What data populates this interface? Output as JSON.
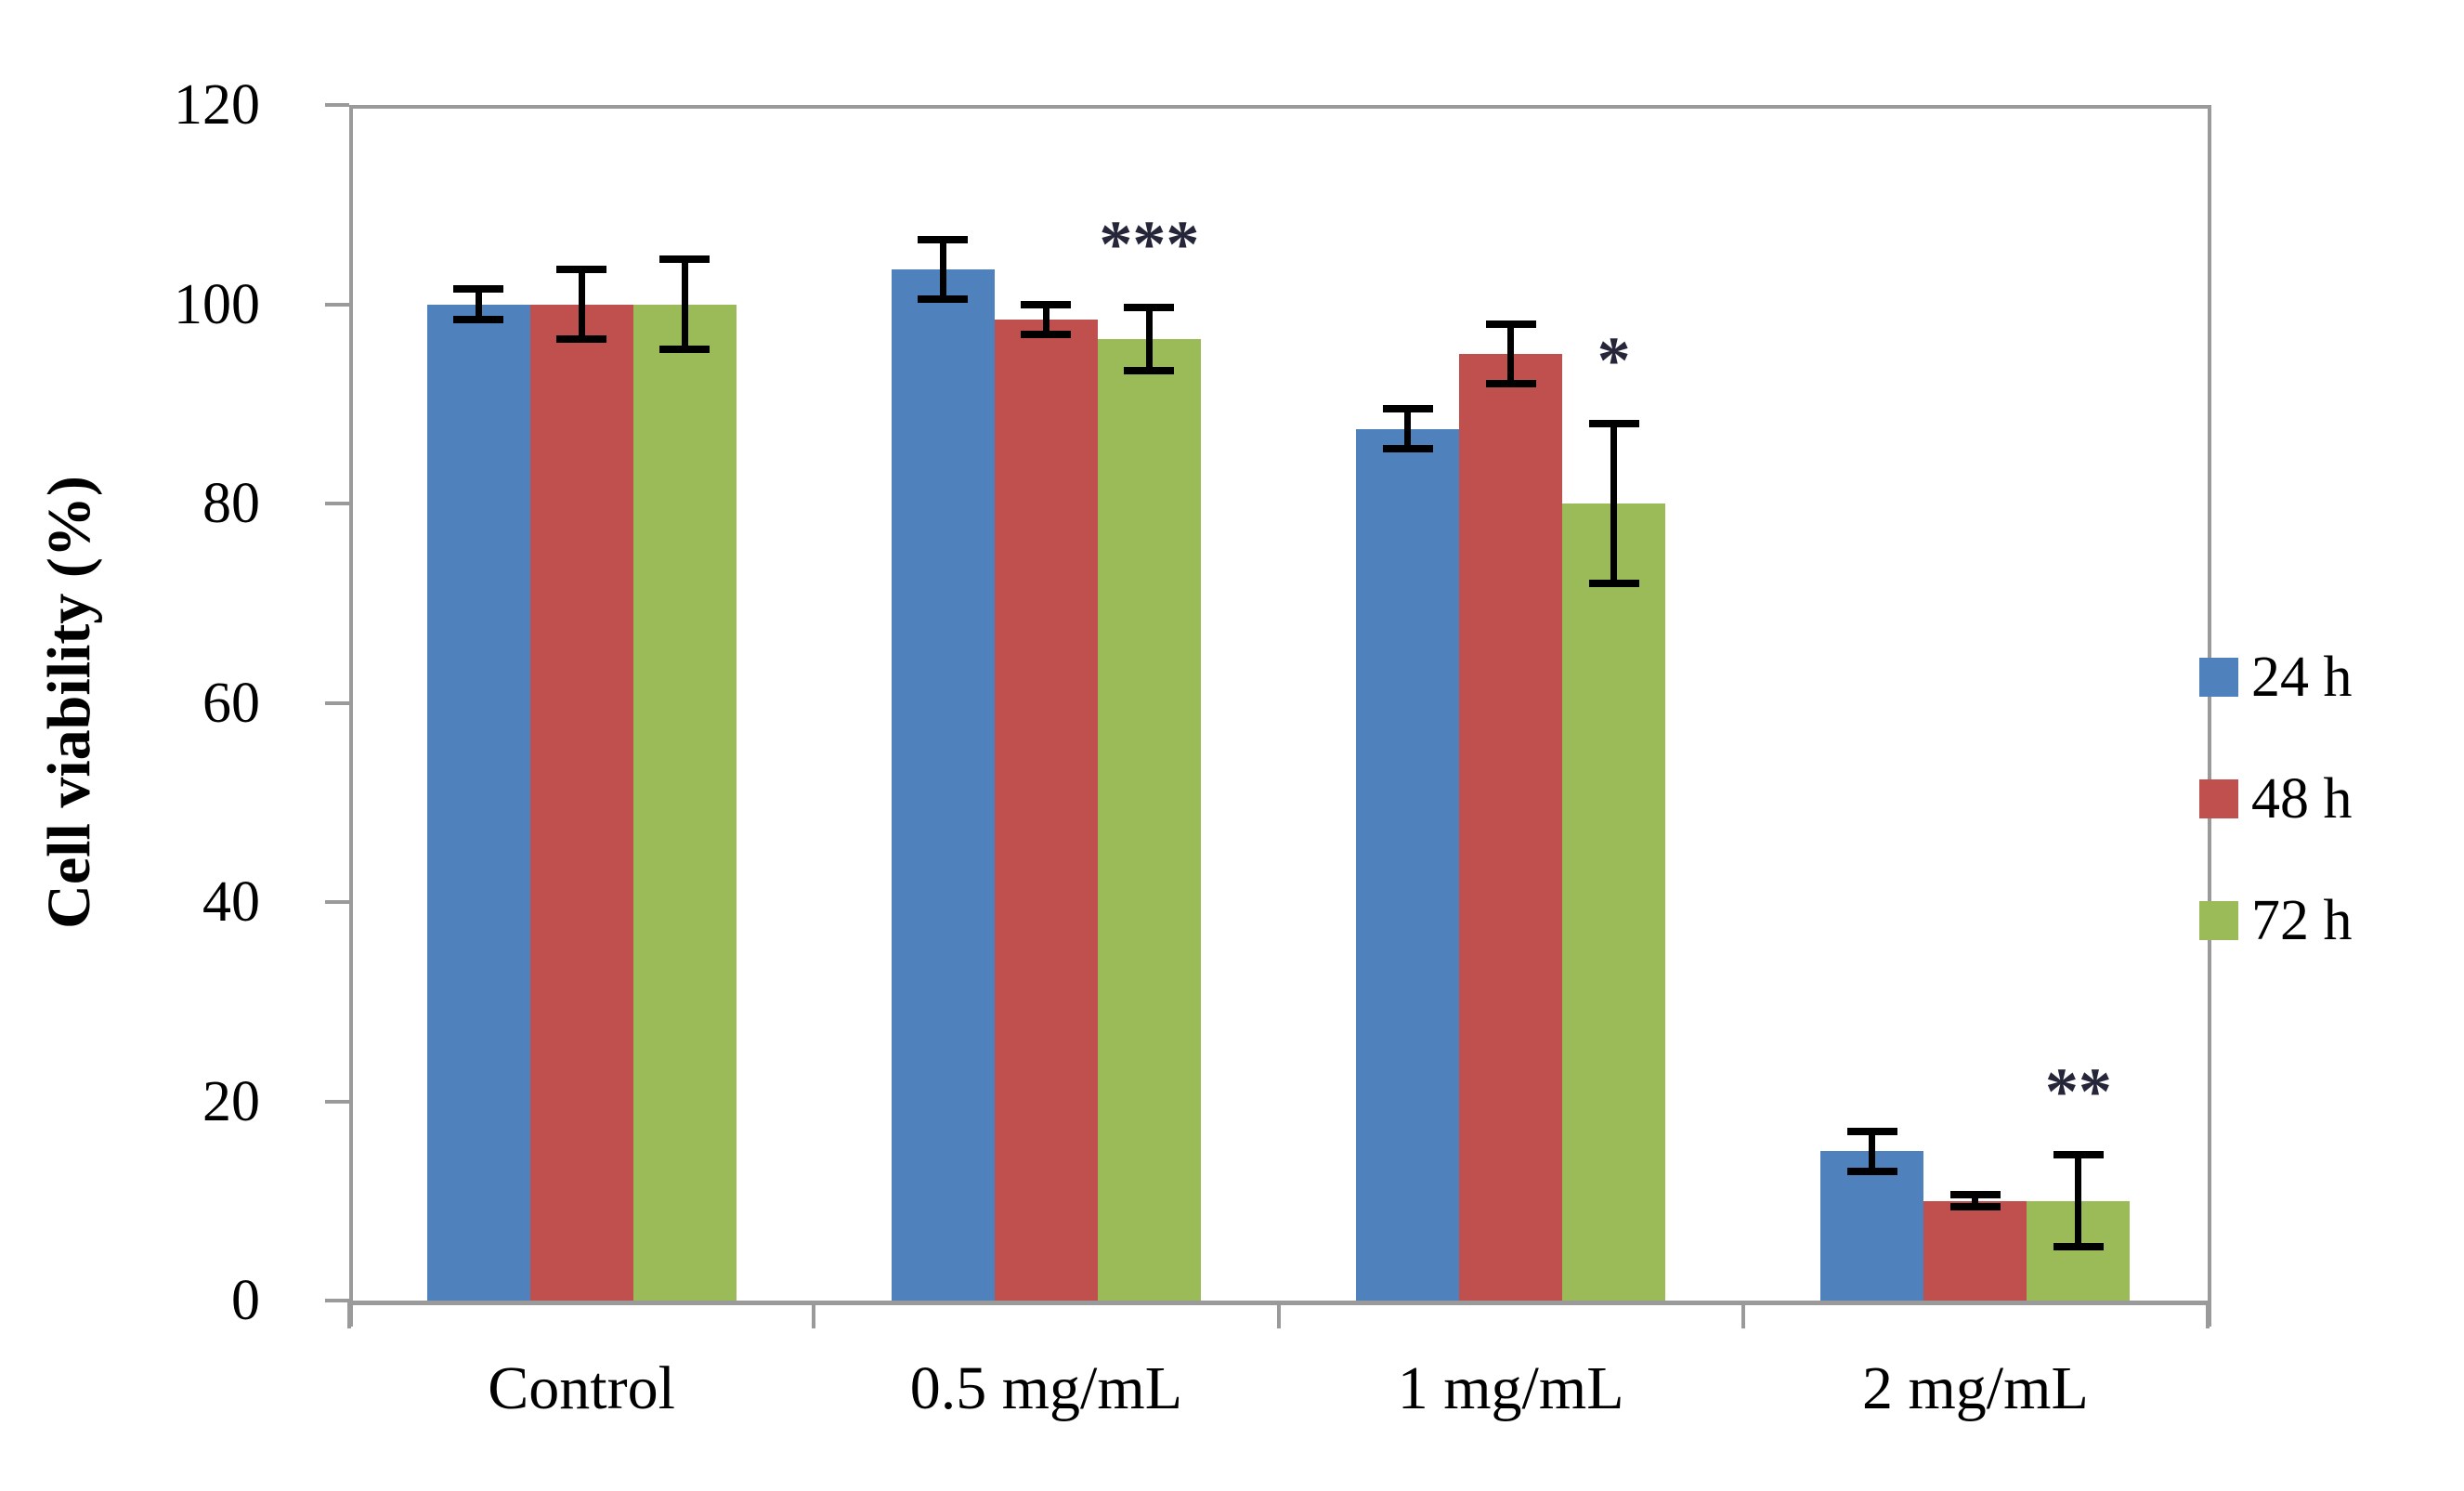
{
  "figure": {
    "background": "#ffffff"
  },
  "chart_data": {
    "type": "bar",
    "title": "",
    "xlabel": "",
    "ylabel": "Cell viability (%)",
    "ylim": [
      0,
      120
    ],
    "yticks": [
      0,
      20,
      40,
      60,
      80,
      100,
      120
    ],
    "grid": false,
    "legend_position": "right",
    "categories": [
      "Control",
      "0.5 mg/mL",
      "1 mg/mL",
      "2 mg/mL"
    ],
    "series": [
      {
        "name": "24 h",
        "color": "#4f81bd",
        "values": [
          100,
          103.5,
          87.5,
          15
        ],
        "errors": [
          1.5,
          3.0,
          2.0,
          2.0
        ]
      },
      {
        "name": "48 h",
        "color": "#c0504d",
        "values": [
          100,
          98.5,
          95,
          10
        ],
        "errors": [
          3.5,
          1.5,
          3.0,
          0.6
        ]
      },
      {
        "name": "72 h",
        "color": "#9bbb59",
        "values": [
          100,
          96.5,
          80,
          10
        ],
        "errors": [
          4.5,
          3.2,
          8.0,
          4.6
        ]
      }
    ],
    "annotations": [
      {
        "text": "***",
        "category_index": 1,
        "series_index": 2
      },
      {
        "text": "*",
        "category_index": 2,
        "series_index": 2
      },
      {
        "text": "**",
        "category_index": 3,
        "series_index": 2
      }
    ],
    "axis_color": "#9a9a9a",
    "error_bar_color": "#000000",
    "annotation_color": "#26263a",
    "text_color": "#000000"
  }
}
